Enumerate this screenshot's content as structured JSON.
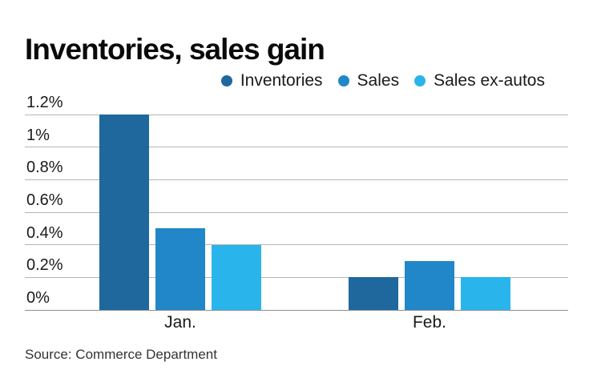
{
  "title": "Inventories, sales gain",
  "legend": {
    "items": [
      {
        "label": "Inventories",
        "color": "#1e689e"
      },
      {
        "label": "Sales",
        "color": "#2187c8"
      },
      {
        "label": "Sales ex-autos",
        "color": "#29b5ec"
      }
    ]
  },
  "source": "Source: Commerce Department",
  "colors": {
    "grid": "#b5b5b5",
    "baseline": "#8d8d8d",
    "text": "#1a1a1a"
  },
  "chart_data": {
    "type": "bar",
    "title": "Inventories, sales gain",
    "categories": [
      "Jan.",
      "Feb."
    ],
    "series": [
      {
        "name": "Inventories",
        "color": "#1e689e",
        "values": [
          1.2,
          0.2
        ]
      },
      {
        "name": "Sales",
        "color": "#2187c8",
        "values": [
          0.5,
          0.3
        ]
      },
      {
        "name": "Sales ex-autos",
        "color": "#29b5ec",
        "values": [
          0.4,
          0.2
        ]
      }
    ],
    "ylim": [
      0,
      1.2
    ],
    "yticks": [
      {
        "value": 1.2,
        "label": "1.2%"
      },
      {
        "value": 1.0,
        "label": "1%"
      },
      {
        "value": 0.8,
        "label": "0.8%"
      },
      {
        "value": 0.6,
        "label": "0.6%"
      },
      {
        "value": 0.4,
        "label": "0.4%"
      },
      {
        "value": 0.2,
        "label": "0.2%"
      },
      {
        "value": 0.0,
        "label": "0%"
      }
    ],
    "grid": true,
    "legend_position": "top-right",
    "xlabel": "",
    "ylabel": "",
    "source": "Source: Commerce Department"
  }
}
